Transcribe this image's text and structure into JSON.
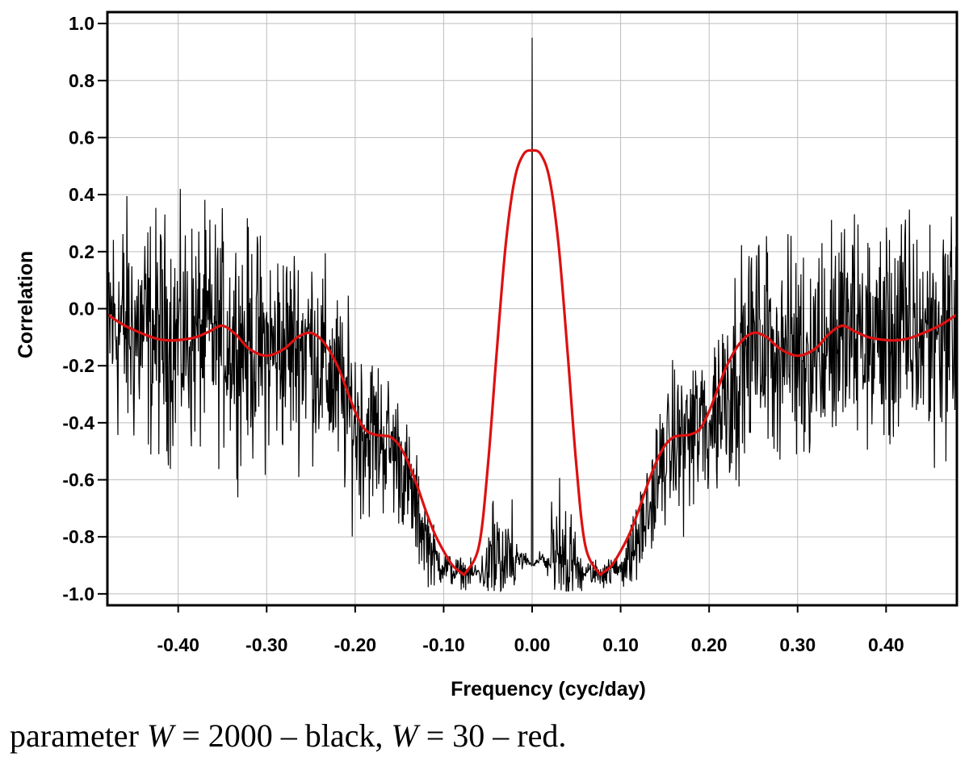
{
  "chart_data": {
    "type": "line",
    "xlabel": "Frequency (cyc/day)",
    "ylabel": "Correlation",
    "xlim": [
      -0.48,
      0.48
    ],
    "ylim": [
      -1.04,
      1.04
    ],
    "x_ticks": [
      -0.4,
      -0.3,
      -0.2,
      -0.1,
      0.0,
      0.1,
      0.2,
      0.3,
      0.4
    ],
    "x_tick_labels": [
      "-0.40",
      "-0.30",
      "-0.20",
      "-0.10",
      "0.00",
      "0.10",
      "0.20",
      "0.30",
      "0.40"
    ],
    "y_ticks": [
      1.0,
      0.8,
      0.6,
      0.4,
      0.2,
      0.0,
      -0.2,
      -0.4,
      -0.6,
      -0.8,
      -1.0
    ],
    "y_tick_labels": [
      "1.0",
      "0.8",
      "0.6",
      "0.4",
      "0.2",
      "0.0",
      "-0.2",
      "-0.4",
      "-0.6",
      "-0.8",
      "-1.0"
    ],
    "grid": true,
    "series": [
      {
        "name": "W = 2000",
        "color": "#000000",
        "style": "noisy",
        "trend_x": [
          -0.48,
          -0.45,
          -0.4,
          -0.35,
          -0.3,
          -0.25,
          -0.22,
          -0.2,
          -0.17,
          -0.15,
          -0.13,
          -0.11,
          -0.09,
          -0.07,
          -0.05,
          -0.03,
          -0.01,
          0.0,
          0.01,
          0.03,
          0.05,
          0.07,
          0.09,
          0.11,
          0.13,
          0.15,
          0.17,
          0.2,
          0.22,
          0.25,
          0.3,
          0.35,
          0.4,
          0.45,
          0.48
        ],
        "trend_y": [
          -0.04,
          -0.08,
          -0.1,
          -0.09,
          -0.15,
          -0.12,
          -0.28,
          -0.4,
          -0.45,
          -0.52,
          -0.72,
          -0.88,
          -0.92,
          -0.93,
          -0.92,
          -0.9,
          -0.88,
          0.95,
          -0.88,
          -0.9,
          -0.92,
          -0.93,
          -0.92,
          -0.88,
          -0.72,
          -0.52,
          -0.45,
          -0.4,
          -0.28,
          -0.12,
          -0.15,
          -0.09,
          -0.1,
          -0.08,
          -0.04
        ],
        "noise_x": [
          -0.48,
          -0.3,
          -0.2,
          -0.13,
          -0.1,
          -0.06,
          -0.04,
          -0.02,
          0.0,
          0.02,
          0.04,
          0.06,
          0.1,
          0.13,
          0.2,
          0.3,
          0.48
        ],
        "noise_amp": [
          0.21,
          0.19,
          0.16,
          0.09,
          0.03,
          0.02,
          0.1,
          0.04,
          0.0,
          0.04,
          0.1,
          0.02,
          0.03,
          0.09,
          0.16,
          0.19,
          0.21
        ],
        "peak": {
          "x": 0.0,
          "y": 0.95
        }
      },
      {
        "name": "W = 30",
        "color": "#dd1111",
        "style": "smooth",
        "x": [
          -0.48,
          -0.46,
          -0.43,
          -0.415,
          -0.4,
          -0.38,
          -0.365,
          -0.35,
          -0.335,
          -0.32,
          -0.3,
          -0.28,
          -0.265,
          -0.25,
          -0.235,
          -0.22,
          -0.21,
          -0.2,
          -0.19,
          -0.18,
          -0.17,
          -0.16,
          -0.15,
          -0.14,
          -0.13,
          -0.12,
          -0.11,
          -0.1,
          -0.09,
          -0.08,
          -0.075,
          -0.06,
          -0.05,
          -0.04,
          -0.03,
          -0.02,
          -0.01,
          0.0,
          0.01,
          0.02,
          0.03,
          0.04,
          0.05,
          0.06,
          0.075,
          0.08,
          0.09,
          0.1,
          0.11,
          0.12,
          0.13,
          0.14,
          0.15,
          0.16,
          0.17,
          0.18,
          0.19,
          0.2,
          0.21,
          0.22,
          0.235,
          0.25,
          0.265,
          0.28,
          0.3,
          0.32,
          0.335,
          0.35,
          0.365,
          0.38,
          0.4,
          0.415,
          0.43,
          0.46,
          0.48
        ],
        "y": [
          -0.02,
          -0.06,
          -0.1,
          -0.11,
          -0.11,
          -0.1,
          -0.08,
          -0.06,
          -0.09,
          -0.14,
          -0.165,
          -0.14,
          -0.1,
          -0.085,
          -0.12,
          -0.2,
          -0.28,
          -0.36,
          -0.42,
          -0.44,
          -0.445,
          -0.45,
          -0.48,
          -0.54,
          -0.62,
          -0.71,
          -0.79,
          -0.85,
          -0.9,
          -0.925,
          -0.925,
          -0.83,
          -0.55,
          -0.15,
          0.22,
          0.45,
          0.54,
          0.555,
          0.54,
          0.45,
          0.22,
          -0.15,
          -0.55,
          -0.83,
          -0.925,
          -0.925,
          -0.9,
          -0.85,
          -0.79,
          -0.71,
          -0.62,
          -0.54,
          -0.48,
          -0.45,
          -0.445,
          -0.44,
          -0.42,
          -0.36,
          -0.28,
          -0.2,
          -0.12,
          -0.085,
          -0.1,
          -0.14,
          -0.165,
          -0.14,
          -0.09,
          -0.06,
          -0.08,
          -0.1,
          -0.11,
          -0.11,
          -0.1,
          -0.06,
          -0.02
        ]
      }
    ]
  },
  "caption": {
    "prefix": "parameter ",
    "var1": "W",
    "mid1": " = 2000 – black, ",
    "var2": "W",
    "mid2": " = 30 – red."
  }
}
